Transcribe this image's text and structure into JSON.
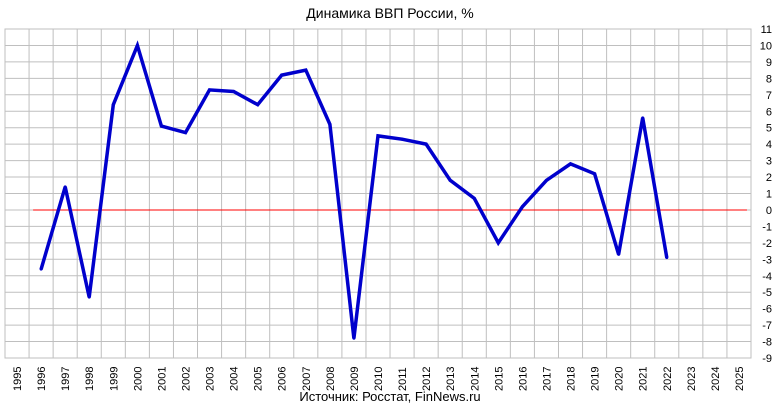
{
  "chart_data": {
    "type": "line",
    "title": "Динамика ВВП России, %",
    "source": "Источник: Росстат, FinNews.ru",
    "x_ticks": [
      "1995",
      "1996",
      "1997",
      "1998",
      "1999",
      "2000",
      "2001",
      "2002",
      "2003",
      "2004",
      "2005",
      "2006",
      "2007",
      "2008",
      "2009",
      "2010",
      "2011",
      "2012",
      "2013",
      "2014",
      "2015",
      "2016",
      "2017",
      "2018",
      "2019",
      "2020",
      "2021",
      "2022",
      "2023",
      "2024",
      "2025"
    ],
    "y_ticks": [
      11,
      10,
      9,
      8,
      7,
      6,
      5,
      4,
      3,
      2,
      1,
      0,
      -1,
      -2,
      -3,
      -4,
      -5,
      -6,
      -7,
      -8,
      -9
    ],
    "ylim": [
      -9,
      11
    ],
    "grid": true,
    "series": [
      {
        "x": [
          1996,
          1997,
          1998,
          1999,
          2000,
          2001,
          2002,
          2003,
          2004,
          2005,
          2006,
          2007,
          2008,
          2009,
          2010,
          2011,
          2012,
          2013,
          2014,
          2015,
          2016,
          2017,
          2018,
          2019,
          2020,
          2021,
          2022
        ],
        "values": [
          -3.6,
          1.4,
          -5.3,
          6.4,
          10.0,
          5.1,
          4.7,
          7.3,
          7.2,
          6.4,
          8.2,
          8.5,
          5.2,
          -7.8,
          4.5,
          4.3,
          4.0,
          1.8,
          0.7,
          -2.0,
          0.2,
          1.8,
          2.8,
          2.2,
          -2.7,
          5.6,
          -2.9
        ],
        "color": "#0000cc"
      }
    ],
    "zero_line_color": "#ff0000"
  }
}
